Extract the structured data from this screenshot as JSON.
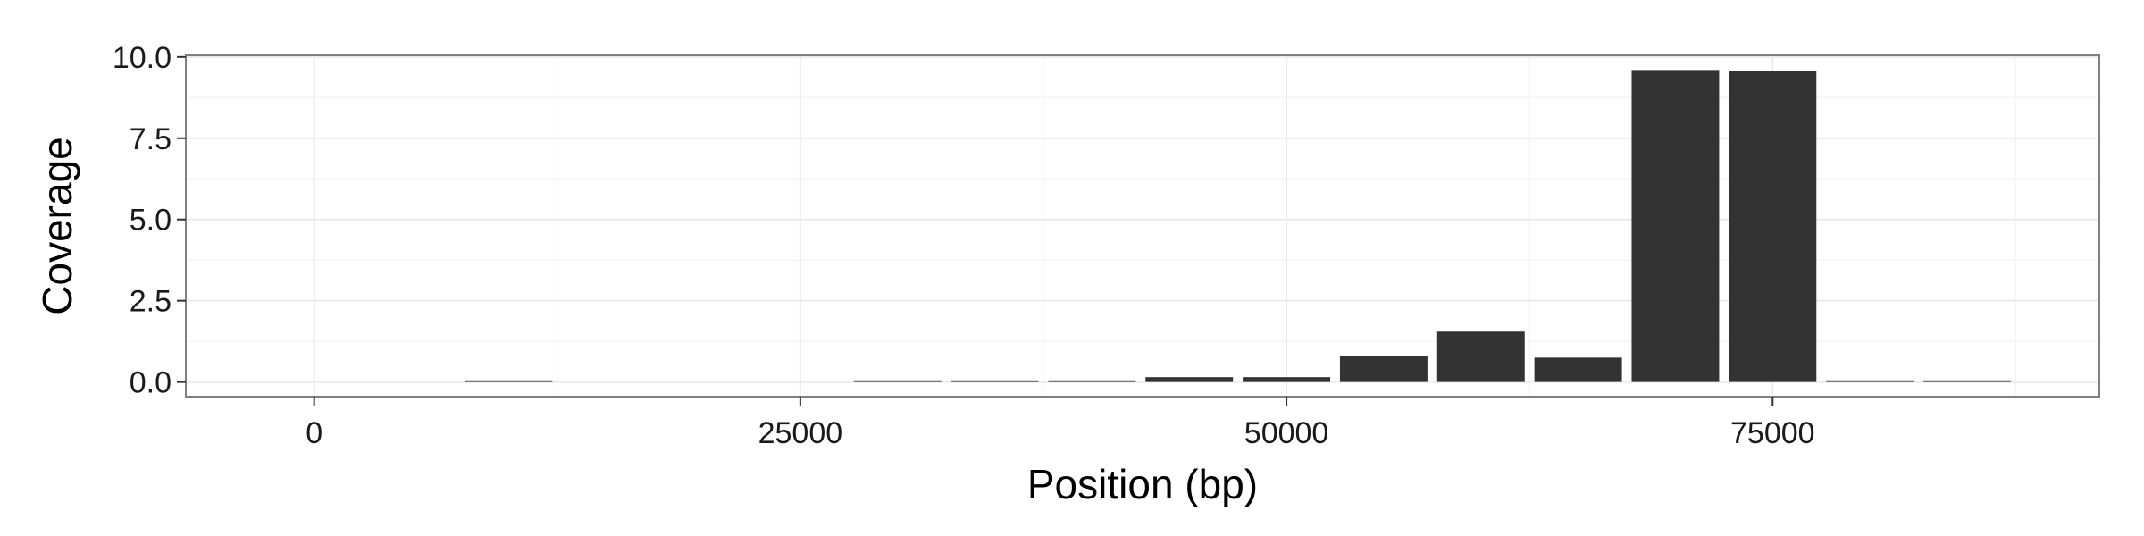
{
  "chart_data": {
    "type": "bar",
    "xlabel": "Position (bp)",
    "ylabel": "Coverage",
    "xlim": [
      -6600,
      91800
    ],
    "ylim": [
      -0.45,
      10.05
    ],
    "x_ticks": [
      0,
      25000,
      50000,
      75000
    ],
    "x_tick_labels": [
      "0",
      "25000",
      "50000",
      "75000"
    ],
    "y_ticks": [
      0.0,
      2.5,
      5.0,
      7.5,
      10.0
    ],
    "y_tick_labels": [
      "0.0",
      "2.5",
      "5.0",
      "7.5",
      "10.0"
    ],
    "grid": true,
    "bar_width": 4500,
    "x": [
      10000,
      15000,
      20000,
      25000,
      30000,
      35000,
      40000,
      45000,
      50000,
      55000,
      60000,
      65000,
      70000,
      75000,
      80000,
      85000
    ],
    "values": [
      0.05,
      0,
      0,
      0,
      0.05,
      0.05,
      0.05,
      0.15,
      0.15,
      0.8,
      1.55,
      0.75,
      9.6,
      9.58,
      0.05,
      0.05
    ],
    "colors": {
      "bar": "#333333",
      "panel_border": "#7f7f7f",
      "grid_major": "#ebebeb",
      "grid_minor": "#f5f5f5"
    }
  }
}
